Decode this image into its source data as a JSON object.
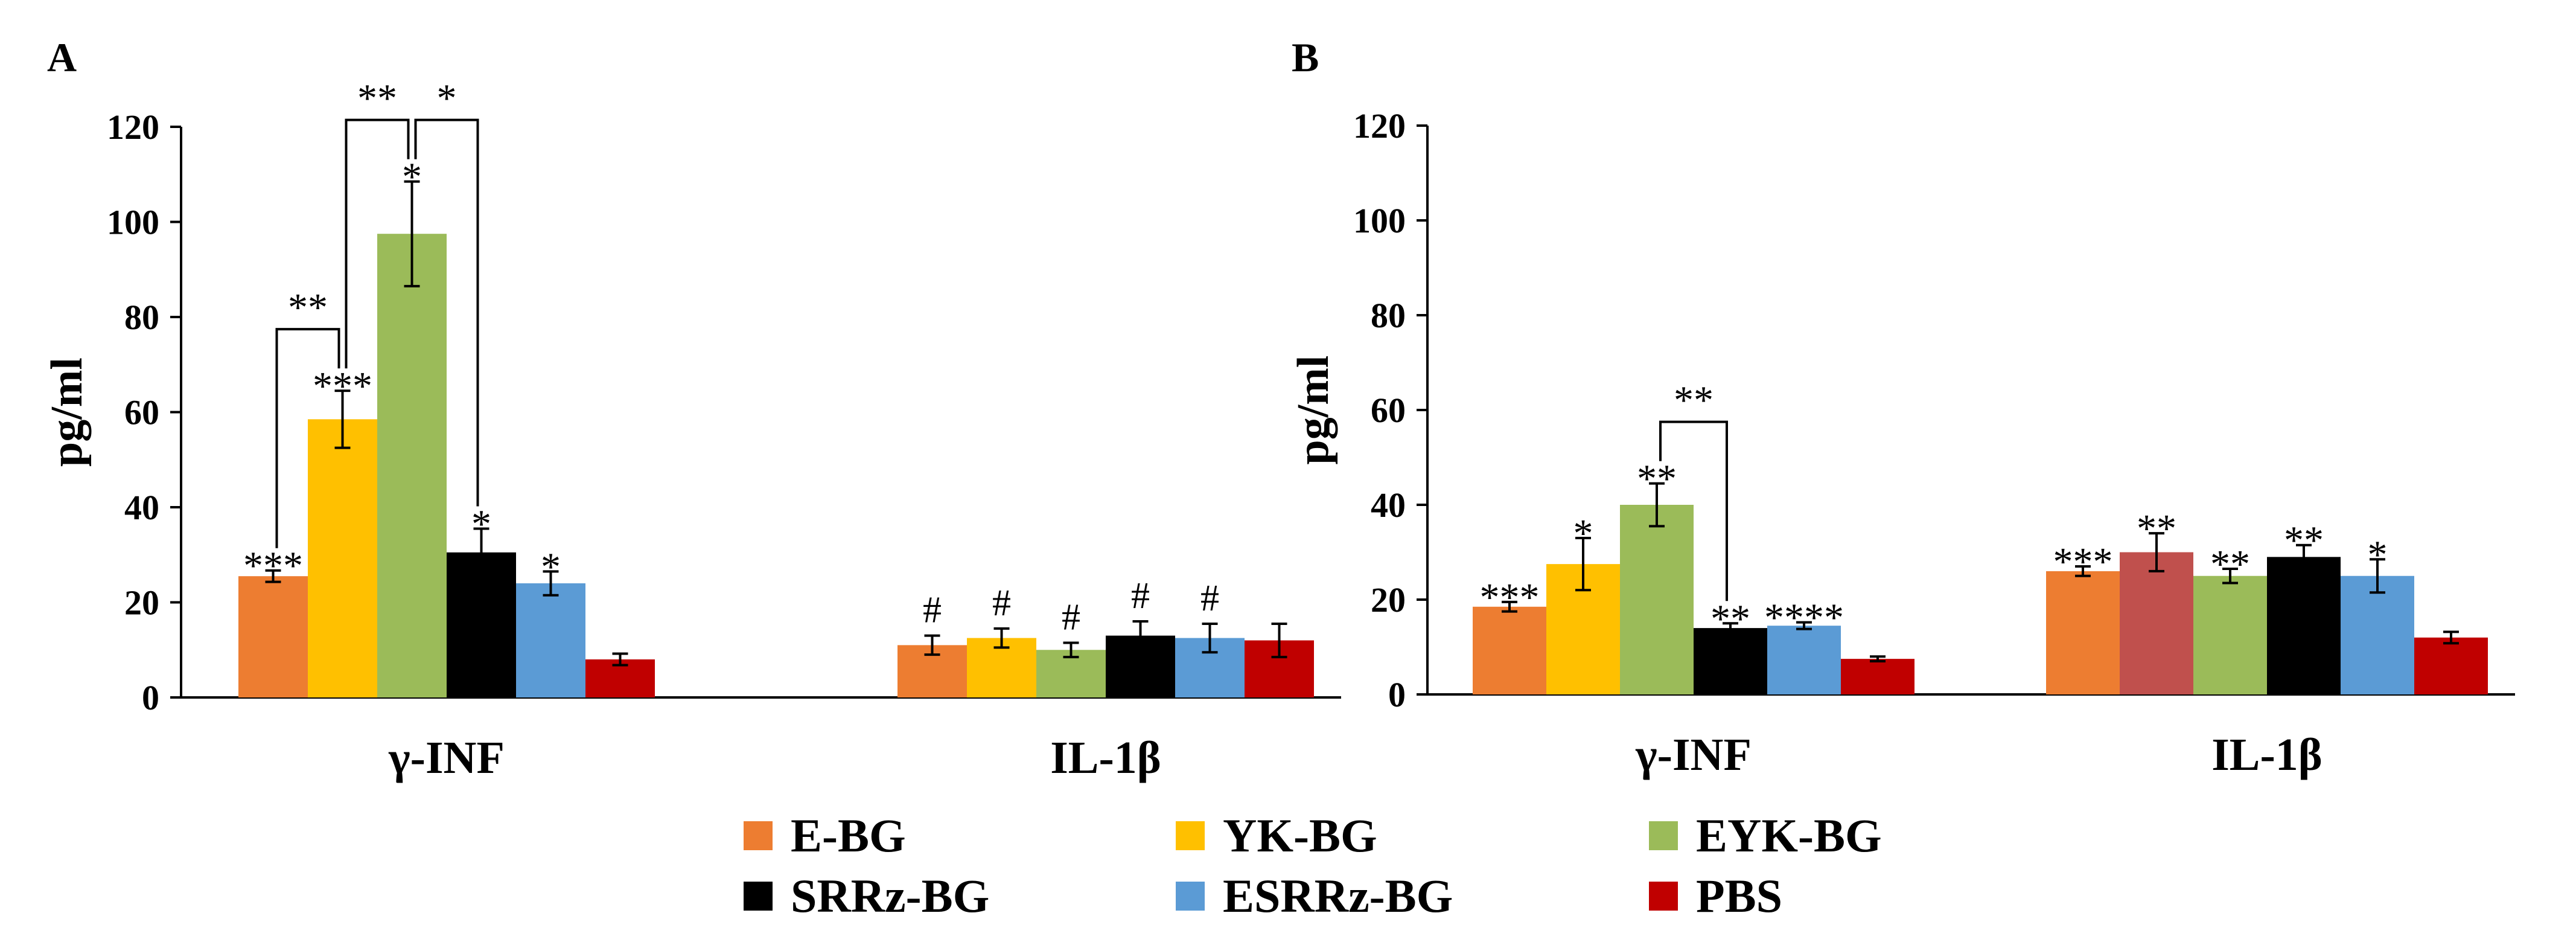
{
  "legend": [
    {
      "name": "E-BG",
      "color": "#ED7D31"
    },
    {
      "name": "YK-BG",
      "color": "#FFC000"
    },
    {
      "name": "EYK-BG",
      "color": "#9BBB59"
    },
    {
      "name": "SRRz-BG",
      "color": "#000000"
    },
    {
      "name": "ESRRz-BG",
      "color": "#5B9BD5"
    },
    {
      "name": "PBS",
      "color": "#C00000"
    }
  ],
  "chart_data": [
    {
      "panel": "A",
      "type": "bar",
      "ylabel": "pg/ml",
      "ylim": [
        0,
        120
      ],
      "yticks": [
        "0",
        "20",
        "40",
        "60",
        "80",
        "100",
        "120"
      ],
      "categories": [
        "γ-INF",
        "IL-1β"
      ],
      "series": [
        {
          "name": "E-BG",
          "color": "#ED7D31",
          "values": [
            25.5,
            11
          ],
          "errors": [
            1.2,
            2
          ],
          "marks": [
            "***",
            "#"
          ]
        },
        {
          "name": "YK-BG",
          "color": "#FFC000",
          "values": [
            58.5,
            12.5
          ],
          "errors": [
            6,
            2
          ],
          "marks": [
            "***",
            "#"
          ]
        },
        {
          "name": "EYK-BG",
          "color": "#9BBB59",
          "values": [
            97.5,
            10
          ],
          "errors": [
            11,
            1.5
          ],
          "marks": [
            "*",
            "#"
          ]
        },
        {
          "name": "SRRz-BG",
          "color": "#000000",
          "values": [
            30.5,
            13
          ],
          "errors": [
            5,
            3
          ],
          "marks": [
            "*",
            "#"
          ]
        },
        {
          "name": "ESRRz-BG",
          "color": "#5B9BD5",
          "values": [
            24,
            12.5
          ],
          "errors": [
            2.5,
            3
          ],
          "marks": [
            "*",
            "#"
          ]
        },
        {
          "name": "PBS",
          "color": "#C00000",
          "values": [
            8,
            12
          ],
          "errors": [
            1.2,
            3.5
          ],
          "marks": [
            "",
            ""
          ]
        }
      ],
      "brackets": [
        {
          "from_series": 0,
          "to_series": 1,
          "category": 0,
          "label": "**"
        },
        {
          "from_series": 1,
          "to_series": 2,
          "category": 0,
          "label": "**"
        },
        {
          "from_series": 2,
          "to_series": 3,
          "category": 0,
          "label": "*"
        }
      ]
    },
    {
      "panel": "B",
      "type": "bar",
      "ylabel": "pg/ml",
      "ylim": [
        0,
        120
      ],
      "yticks": [
        "0",
        "20",
        "40",
        "60",
        "80",
        "100",
        "120"
      ],
      "categories": [
        "γ-INF",
        "IL-1β"
      ],
      "series": [
        {
          "name": "E-BG",
          "color": "#ED7D31",
          "values": [
            18.5,
            26
          ],
          "errors": [
            1,
            1
          ],
          "marks": [
            "***",
            "***"
          ]
        },
        {
          "name": "YK-BG",
          "color": "#FFC000",
          "values": [
            27.5,
            30
          ],
          "errors": [
            5.5,
            4
          ],
          "marks": [
            "*",
            "**"
          ],
          "alt_colors": [
            null,
            "#C0504D"
          ]
        },
        {
          "name": "EYK-BG",
          "color": "#9BBB59",
          "values": [
            40,
            25
          ],
          "errors": [
            4.5,
            1.5
          ],
          "marks": [
            "**",
            "**"
          ]
        },
        {
          "name": "SRRz-BG",
          "color": "#000000",
          "values": [
            14,
            29
          ],
          "errors": [
            1,
            2.5
          ],
          "marks": [
            "**",
            "**"
          ]
        },
        {
          "name": "ESRRz-BG",
          "color": "#5B9BD5",
          "values": [
            14.5,
            25
          ],
          "errors": [
            0.7,
            3.5
          ],
          "marks": [
            "****",
            "*"
          ]
        },
        {
          "name": "PBS",
          "color": "#C00000",
          "values": [
            7.5,
            12
          ],
          "errors": [
            0.5,
            1.2
          ],
          "marks": [
            "",
            ""
          ]
        }
      ],
      "brackets": [
        {
          "from_series": 2,
          "to_series": 3,
          "category": 0,
          "label": "**"
        }
      ]
    }
  ]
}
